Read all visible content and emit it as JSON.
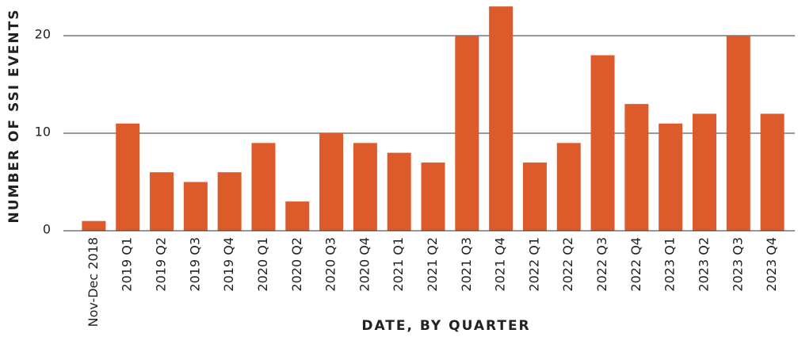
{
  "chart_data": {
    "type": "bar",
    "y_label": "NUMBER OF SSI EVENTS",
    "x_label": "DATE, BY QUARTER",
    "categories": [
      "Nov-Dec 2018",
      "2019 Q1",
      "2019 Q2",
      "2019 Q3",
      "2019 Q4",
      "2020 Q1",
      "2020 Q2",
      "2020 Q3",
      "2020 Q4",
      "2021 Q1",
      "2021 Q2",
      "2021 Q3",
      "2021 Q4",
      "2022 Q1",
      "2022 Q2",
      "2022 Q3",
      "2022 Q4",
      "2023 Q1",
      "2023 Q2",
      "2023 Q3",
      "2023 Q4"
    ],
    "values": [
      1,
      11,
      6,
      5,
      6,
      9,
      3,
      10,
      9,
      8,
      7,
      20,
      23,
      7,
      9,
      18,
      13,
      11,
      12,
      20,
      12
    ],
    "color": "#dd5b2b",
    "ylim": [
      0,
      23.5
    ],
    "yticks": [
      0,
      10,
      20
    ],
    "grid": true
  }
}
